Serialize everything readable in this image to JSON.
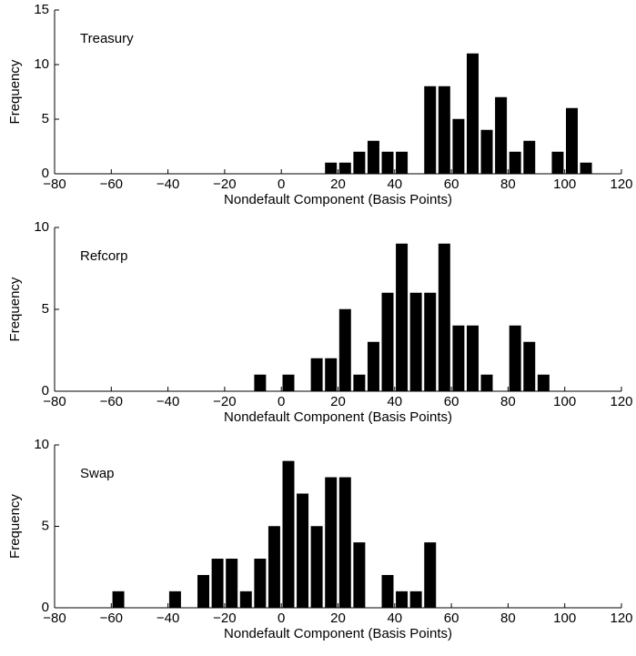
{
  "chart_data": [
    {
      "type": "histogram",
      "annotation": "Treasury",
      "xlabel": "Nondefault Component (Basis Points)",
      "ylabel": "Frequency",
      "color": "#000000",
      "bins": [
        -65,
        -60,
        -55,
        -50,
        -45,
        -40,
        -35,
        -30,
        -25,
        -20,
        -15,
        -10,
        -5,
        0,
        5,
        10,
        15,
        20,
        25,
        30,
        35,
        40,
        45,
        50,
        55,
        60,
        65,
        70,
        75,
        80,
        85,
        90,
        95,
        100,
        105,
        110
      ],
      "values": [
        0,
        0,
        0,
        0,
        0,
        0,
        0,
        0,
        0,
        0,
        0,
        0,
        0,
        0,
        0,
        0,
        1,
        1,
        2,
        3,
        2,
        2,
        0,
        8,
        8,
        5,
        11,
        4,
        7,
        2,
        3,
        0,
        2,
        6,
        1
      ],
      "xlim": [
        -80,
        120
      ],
      "xticks": [
        {
          "value": -80,
          "label": "−80"
        },
        {
          "value": -60,
          "label": "−60"
        },
        {
          "value": -40,
          "label": "−40"
        },
        {
          "value": -20,
          "label": "−20"
        },
        0,
        20,
        40,
        60,
        80,
        100,
        120
      ],
      "ylim": [
        0,
        15
      ],
      "yticks": [
        0,
        5,
        10,
        15
      ]
    },
    {
      "type": "histogram",
      "annotation": "Refcorp",
      "xlabel": "Nondefault Component (Basis Points)",
      "ylabel": "Frequency",
      "color": "#000000",
      "bins": [
        -65,
        -60,
        -55,
        -50,
        -45,
        -40,
        -35,
        -30,
        -25,
        -20,
        -15,
        -10,
        -5,
        0,
        5,
        10,
        15,
        20,
        25,
        30,
        35,
        40,
        45,
        50,
        55,
        60,
        65,
        70,
        75,
        80,
        85,
        90,
        95,
        100,
        105,
        110
      ],
      "values": [
        0,
        0,
        0,
        0,
        0,
        0,
        0,
        0,
        0,
        0,
        0,
        1,
        0,
        1,
        0,
        2,
        2,
        5,
        1,
        3,
        6,
        9,
        6,
        6,
        9,
        4,
        4,
        1,
        0,
        4,
        3,
        1,
        0,
        0,
        0
      ],
      "xlim": [
        -80,
        120
      ],
      "xticks": [
        {
          "value": -80,
          "label": "−80"
        },
        {
          "value": -60,
          "label": "−60"
        },
        {
          "value": -40,
          "label": "−40"
        },
        {
          "value": -20,
          "label": "−20"
        },
        0,
        20,
        40,
        60,
        80,
        100,
        120
      ],
      "ylim": [
        0,
        10
      ],
      "yticks": [
        0,
        5,
        10
      ]
    },
    {
      "type": "histogram",
      "annotation": "Swap",
      "xlabel": "Nondefault Component (Basis Points)",
      "ylabel": "Frequency",
      "color": "#000000",
      "bins": [
        -60,
        -55,
        -50,
        -45,
        -40,
        -35,
        -30,
        -25,
        -20,
        -15,
        -10,
        -5,
        0,
        5,
        10,
        15,
        20,
        25,
        30,
        35,
        40,
        45,
        50,
        55
      ],
      "values": [
        1,
        0,
        0,
        0,
        1,
        0,
        2,
        3,
        3,
        1,
        3,
        5,
        9,
        7,
        5,
        8,
        8,
        4,
        0,
        2,
        1,
        1,
        4
      ],
      "xlim": [
        -80,
        120
      ],
      "xticks": [
        {
          "value": -80,
          "label": "−80"
        },
        {
          "value": -60,
          "label": "−60"
        },
        {
          "value": -40,
          "label": "−40"
        },
        {
          "value": -20,
          "label": "−20"
        },
        0,
        20,
        40,
        60,
        80,
        100,
        120
      ],
      "ylim": [
        0,
        10
      ],
      "yticks": [
        0,
        5,
        10
      ]
    }
  ]
}
